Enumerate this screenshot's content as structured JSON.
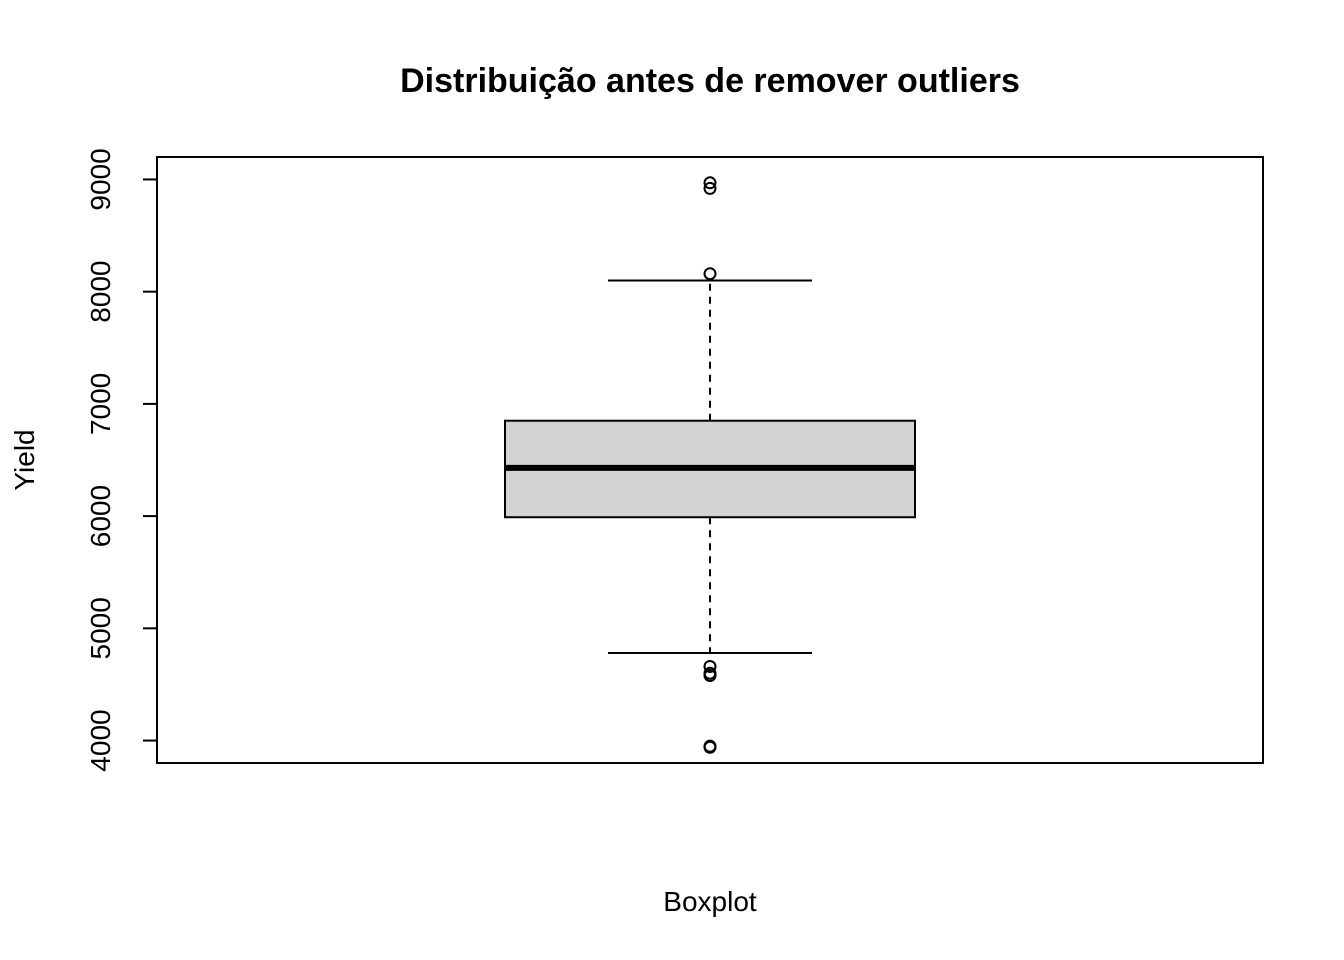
{
  "chart_data": {
    "type": "boxplot",
    "title": "Distribuição antes de remover outliers",
    "xlabel": "Boxplot",
    "ylabel": "Yield",
    "ylim": [
      3800,
      9200
    ],
    "yticks": [
      4000,
      5000,
      6000,
      7000,
      8000,
      9000
    ],
    "ytick_labels": [
      "4000",
      "5000",
      "6000",
      "7000",
      "8000",
      "9000"
    ],
    "grid": false,
    "legend": "none",
    "box": {
      "whisker_low": 4780,
      "q1": 5990,
      "median": 6430,
      "q3": 6850,
      "whisker_high": 8100
    },
    "outliers": [
      8970,
      8920,
      8160,
      4660,
      4600,
      4580,
      3950,
      3940
    ],
    "colors": {
      "box_fill": "#d3d3d3",
      "stroke": "#000000",
      "background": "#ffffff"
    }
  }
}
